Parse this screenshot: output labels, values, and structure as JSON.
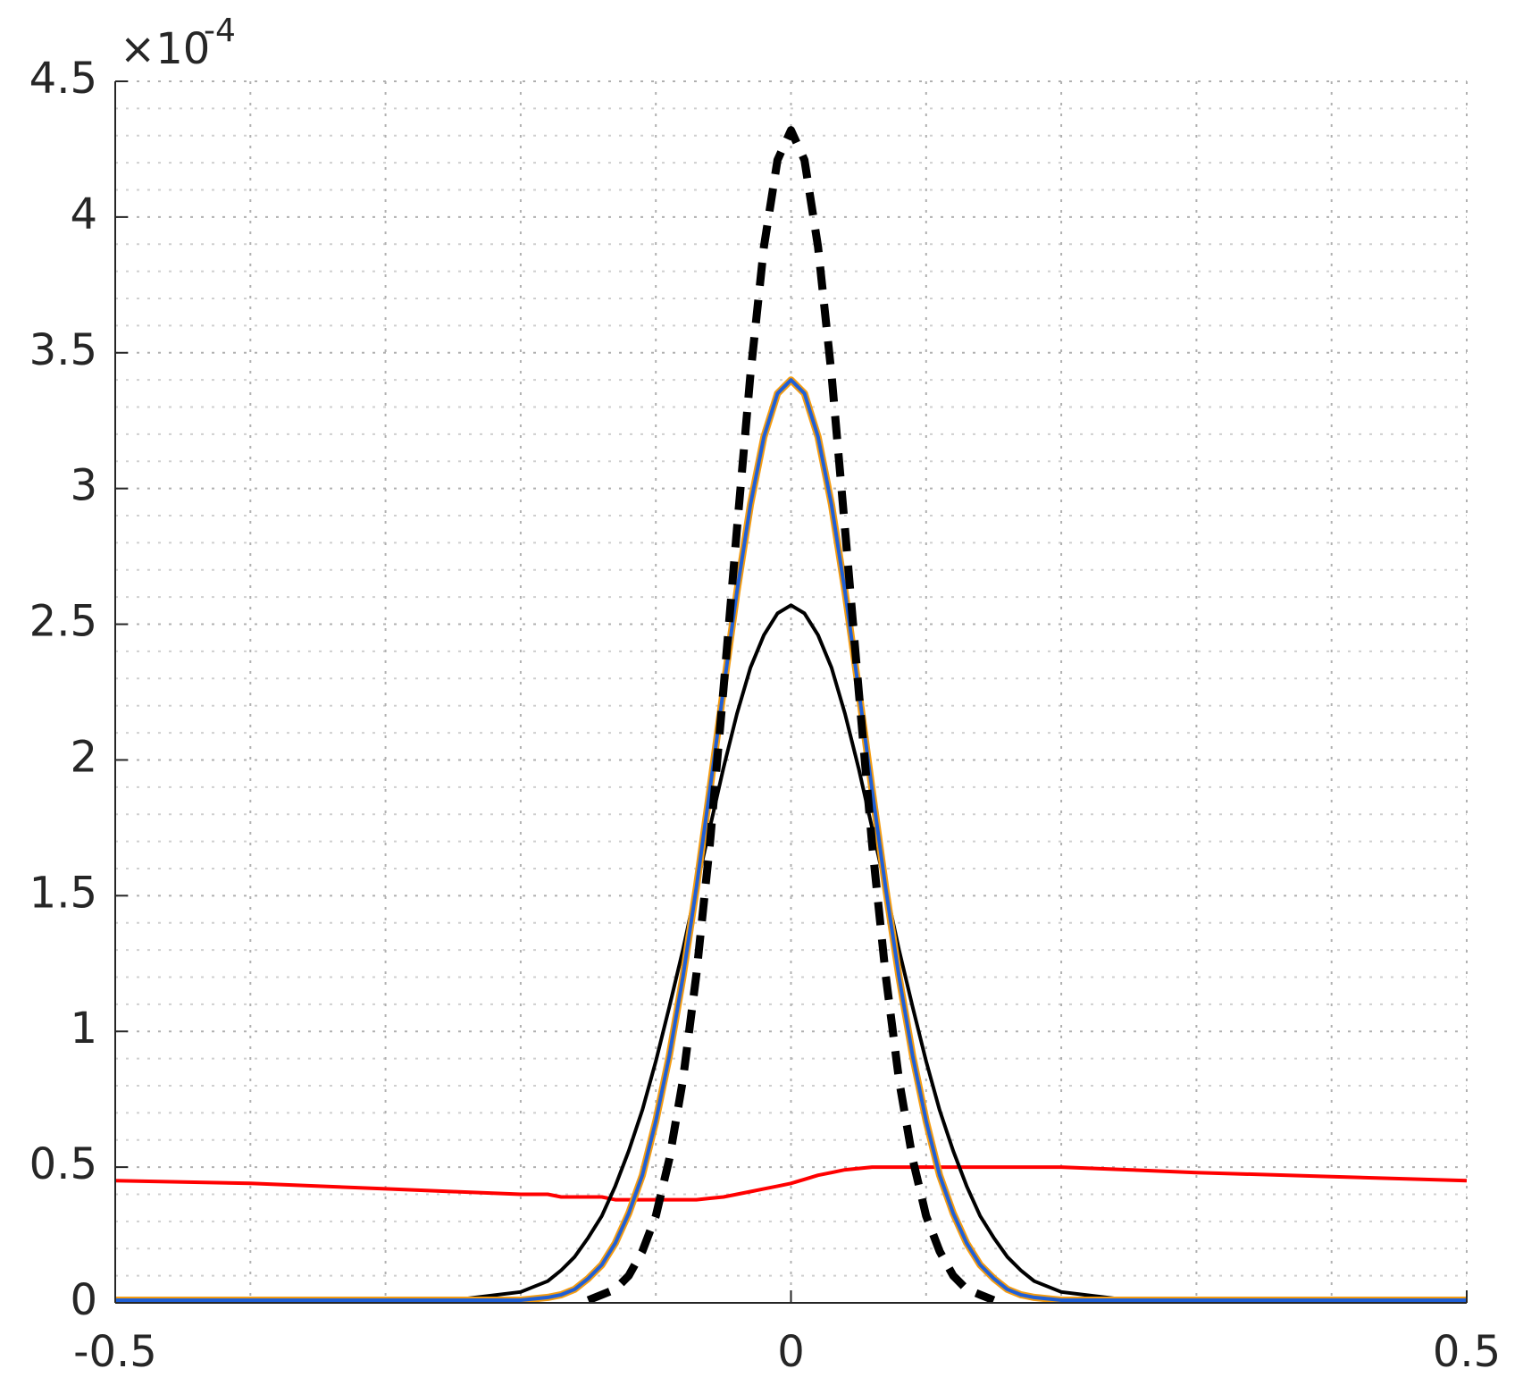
{
  "chart_data": {
    "type": "line",
    "y_multiplier": "×10",
    "y_exponent": "-4",
    "x": [
      -0.5,
      -0.4,
      -0.3,
      -0.25,
      -0.2,
      -0.18,
      -0.17,
      -0.16,
      -0.15,
      -0.14,
      -0.13,
      -0.12,
      -0.11,
      -0.1,
      -0.09,
      -0.08,
      -0.07,
      -0.06,
      -0.05,
      -0.04,
      -0.03,
      -0.02,
      -0.01,
      0,
      0.01,
      0.02,
      0.03,
      0.04,
      0.05,
      0.06,
      0.07,
      0.08,
      0.09,
      0.1,
      0.11,
      0.12,
      0.13,
      0.14,
      0.15,
      0.16,
      0.17,
      0.18,
      0.2,
      0.25,
      0.3,
      0.4,
      0.5
    ],
    "series": [
      {
        "color": "#ff0000",
        "style": "solid",
        "width": 4,
        "values": [
          0.45,
          0.44,
          0.42,
          0.41,
          0.4,
          0.4,
          0.39,
          0.39,
          0.39,
          0.39,
          0.38,
          0.38,
          0.38,
          0.38,
          0.38,
          0.38,
          0.38,
          0.385,
          0.39,
          0.4,
          0.41,
          0.42,
          0.43,
          0.44,
          0.455,
          0.47,
          0.48,
          0.49,
          0.495,
          0.5,
          0.5,
          0.5,
          0.5,
          0.5,
          0.5,
          0.5,
          0.5,
          0.5,
          0.5,
          0.5,
          0.5,
          0.5,
          0.5,
          0.49,
          0.48,
          0.465,
          0.45
        ]
      },
      {
        "color": "#000000",
        "style": "solid",
        "width": 4,
        "values": [
          0.01,
          0.01,
          0.01,
          0.01,
          0.04,
          0.08,
          0.12,
          0.17,
          0.24,
          0.32,
          0.43,
          0.56,
          0.71,
          0.89,
          1.09,
          1.3,
          1.53,
          1.75,
          1.97,
          2.17,
          2.34,
          2.46,
          2.54,
          2.57,
          2.54,
          2.46,
          2.34,
          2.17,
          1.97,
          1.75,
          1.53,
          1.3,
          1.09,
          0.89,
          0.71,
          0.56,
          0.43,
          0.32,
          0.24,
          0.17,
          0.12,
          0.08,
          0.04,
          0.01,
          0.01,
          0.01,
          0.01
        ]
      },
      {
        "color": "#f39c12",
        "style": "solid",
        "width": 8,
        "values": [
          0.01,
          0.01,
          0.01,
          0.01,
          0.01,
          0.02,
          0.03,
          0.05,
          0.09,
          0.14,
          0.22,
          0.33,
          0.47,
          0.67,
          0.91,
          1.2,
          1.53,
          1.89,
          2.26,
          2.62,
          2.94,
          3.19,
          3.35,
          3.4,
          3.35,
          3.19,
          2.94,
          2.62,
          2.26,
          1.89,
          1.53,
          1.2,
          0.91,
          0.67,
          0.47,
          0.33,
          0.22,
          0.14,
          0.09,
          0.05,
          0.03,
          0.02,
          0.01,
          0.01,
          0.01,
          0.01,
          0.01
        ]
      },
      {
        "color": "#1f5fd6",
        "style": "solid",
        "width": 4,
        "values": [
          0.01,
          0.01,
          0.01,
          0.01,
          0.01,
          0.02,
          0.03,
          0.05,
          0.09,
          0.14,
          0.22,
          0.33,
          0.47,
          0.67,
          0.91,
          1.2,
          1.53,
          1.89,
          2.26,
          2.62,
          2.94,
          3.19,
          3.35,
          3.4,
          3.35,
          3.19,
          2.94,
          2.62,
          2.26,
          1.89,
          1.53,
          1.2,
          0.91,
          0.67,
          0.47,
          0.33,
          0.22,
          0.14,
          0.09,
          0.05,
          0.03,
          0.02,
          0.01,
          0.01,
          0.01,
          0.01,
          0.01
        ]
      },
      {
        "color": "#000000",
        "style": "dashed",
        "width": 9,
        "values": [
          null,
          null,
          null,
          null,
          null,
          null,
          null,
          null,
          0.01,
          0.03,
          0.05,
          0.1,
          0.19,
          0.32,
          0.53,
          0.82,
          1.21,
          1.69,
          2.26,
          2.85,
          3.42,
          3.89,
          4.21,
          4.32,
          4.21,
          3.89,
          3.42,
          2.85,
          2.26,
          1.69,
          1.21,
          0.82,
          0.53,
          0.32,
          0.19,
          0.1,
          0.05,
          0.03,
          0.01,
          null,
          null,
          null,
          null,
          null,
          null,
          null,
          null
        ]
      }
    ],
    "xlim": [
      -0.5,
      0.5
    ],
    "xticks": [
      -0.5,
      0,
      0.5
    ],
    "xgrid": [
      -0.5,
      -0.4,
      -0.3,
      -0.2,
      -0.1,
      0,
      0.1,
      0.2,
      0.3,
      0.4,
      0.5
    ],
    "ylim": [
      0,
      4.5
    ],
    "yticks": [
      0,
      0.5,
      1,
      1.5,
      2,
      2.5,
      3,
      3.5,
      4,
      4.5
    ],
    "yminorgrid": [
      0.1,
      0.2,
      0.3,
      0.4,
      0.6,
      0.7,
      0.8,
      0.9,
      1.1,
      1.2,
      1.3,
      1.4,
      1.6,
      1.7,
      1.8,
      1.9,
      2.1,
      2.2,
      2.3,
      2.4,
      2.6,
      2.7,
      2.8,
      2.9,
      3.1,
      3.2,
      3.3,
      3.4,
      3.6,
      3.7,
      3.8,
      3.9,
      4.1,
      4.2,
      4.3,
      4.4
    ],
    "grid": true
  }
}
